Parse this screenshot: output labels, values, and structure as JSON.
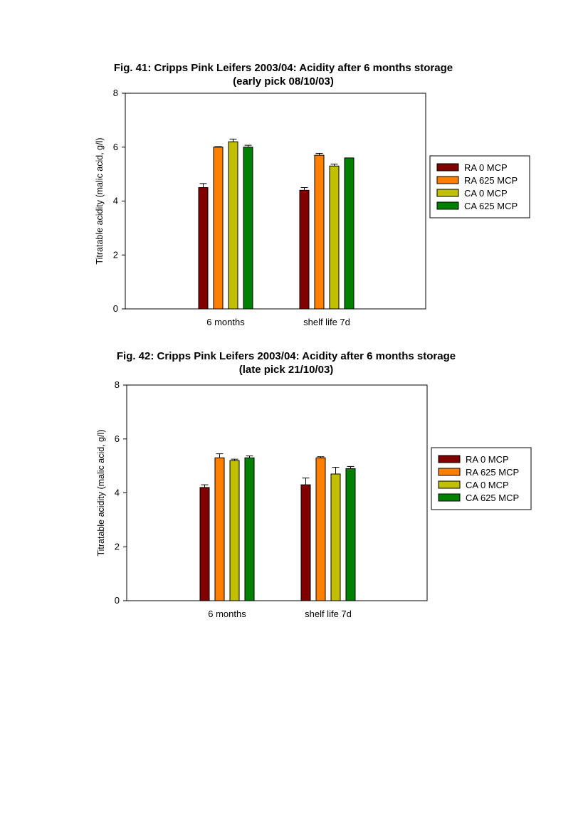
{
  "chart_data": [
    {
      "type": "bar",
      "title": "Fig. 41: Cripps Pink Leifers 2003/04: Acidity after 6 months storage",
      "subtitle": "(early pick 08/10/03)",
      "xlabel": "",
      "ylabel": "Titratable acidity (malic acid, g/l)",
      "ylim": [
        0,
        8
      ],
      "yticks": [
        "0",
        "2",
        "4",
        "6",
        "8"
      ],
      "categories": [
        "6 months",
        "shelf life 7d"
      ],
      "legend_position": "right",
      "grid": false,
      "series": [
        {
          "name": "RA 0 MCP",
          "color": "#800000",
          "values": [
            4.5,
            4.4
          ],
          "errors": [
            0.15,
            0.1
          ]
        },
        {
          "name": "RA 625 MCP",
          "color": "#ff8000",
          "values": [
            6.0,
            5.7
          ],
          "errors": [
            0.02,
            0.07
          ]
        },
        {
          "name": "CA 0 MCP",
          "color": "#c0c000",
          "values": [
            6.2,
            5.3
          ],
          "errors": [
            0.1,
            0.07
          ]
        },
        {
          "name": "CA 625 MCP",
          "color": "#008000",
          "values": [
            6.0,
            5.6
          ],
          "errors": [
            0.07,
            0.0
          ]
        }
      ]
    },
    {
      "type": "bar",
      "title": "Fig. 42: Cripps Pink Leifers 2003/04: Acidity after 6 months storage",
      "subtitle": "(late pick 21/10/03)",
      "xlabel": "",
      "ylabel": "Titratable acidity (malic acid, g/l)",
      "ylim": [
        0,
        8
      ],
      "yticks": [
        "0",
        "2",
        "4",
        "6",
        "8"
      ],
      "categories": [
        "6 months",
        "shelf life 7d"
      ],
      "legend_position": "right",
      "grid": false,
      "series": [
        {
          "name": "RA 0 MCP",
          "color": "#800000",
          "values": [
            4.2,
            4.3
          ],
          "errors": [
            0.1,
            0.25
          ]
        },
        {
          "name": "RA 625 MCP",
          "color": "#ff8000",
          "values": [
            5.3,
            5.3
          ],
          "errors": [
            0.15,
            0.04
          ]
        },
        {
          "name": "CA 0 MCP",
          "color": "#c0c000",
          "values": [
            5.2,
            4.7
          ],
          "errors": [
            0.05,
            0.25
          ]
        },
        {
          "name": "CA 625 MCP",
          "color": "#008000",
          "values": [
            5.3,
            4.9
          ],
          "errors": [
            0.07,
            0.08
          ]
        }
      ]
    }
  ]
}
